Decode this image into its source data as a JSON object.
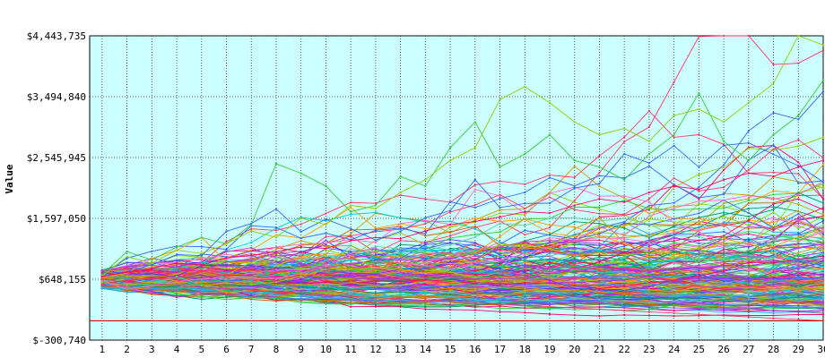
{
  "chart_data": {
    "type": "line",
    "title": "",
    "xlabel": "",
    "ylabel": "Value",
    "x": [
      1,
      2,
      3,
      4,
      5,
      6,
      7,
      8,
      9,
      10,
      11,
      12,
      13,
      14,
      15,
      16,
      17,
      18,
      19,
      20,
      21,
      22,
      23,
      24,
      25,
      26,
      27,
      28,
      29,
      30
    ],
    "x_tick_labels": [
      "1",
      "2",
      "3",
      "4",
      "5",
      "6",
      "7",
      "8",
      "9",
      "10",
      "11",
      "12",
      "13",
      "14",
      "15",
      "16",
      "17",
      "18",
      "19",
      "20",
      "21",
      "22",
      "23",
      "24",
      "25",
      "26",
      "27",
      "28",
      "29",
      "30"
    ],
    "y_ticks": [
      -300740,
      648155,
      1597050,
      2545945,
      3494840,
      4443735
    ],
    "y_tick_labels": [
      "$-300,740",
      "$648,155",
      "$1,597,050",
      "$2,545,945",
      "$3,494,840",
      "$4,443,735"
    ],
    "ylim": [
      -300740,
      4443735
    ],
    "reference_line": {
      "value": 0,
      "color": "#cc0000"
    },
    "grid": true,
    "plot_background": "#ccffff",
    "series_count": 200,
    "start_value": 648155,
    "series": [
      {
        "name": "",
        "values": [
          720000,
          1080000,
          950000,
          1150000,
          1300000,
          1200000,
          1500000,
          2450000,
          2300000,
          2100000,
          1700000,
          1800000,
          2250000,
          2100000,
          2700000,
          3100000,
          2400000,
          2600000,
          2900000,
          2500000,
          2400000,
          2200000,
          2600000,
          2900000,
          3550000,
          2800000,
          2500000,
          2900000,
          3200000,
          3750000
        ]
      },
      {
        "name": "",
        "values": [
          700000,
          1000000,
          900000,
          1100000,
          1050000,
          1200000,
          1400000,
          1300000,
          1600000,
          1500000,
          1800000,
          1750000,
          2000000,
          2200000,
          2500000,
          2700000,
          3450000,
          3650000,
          3400000,
          3100000,
          2900000,
          3000000,
          2800000,
          3200000,
          3300000,
          3100000,
          3400000,
          3700000,
          4443735,
          4300000
        ]
      },
      {
        "name": "",
        "values": [
          690000,
          760000,
          820000,
          900000,
          870000,
          980000,
          1020000,
          1080000,
          1150000,
          1130000,
          1250000,
          1300000,
          1280000,
          1400000,
          1500000,
          1550000,
          1620000,
          1700000,
          1680000,
          1800000,
          1900000,
          1850000,
          2000000,
          2100000,
          2050000,
          2200000,
          2300000,
          2250000,
          2400000,
          2500000
        ]
      },
      {
        "name": "",
        "values": [
          650000,
          600000,
          580000,
          560000,
          520000,
          500000,
          480000,
          450000,
          430000,
          400000,
          380000,
          360000,
          340000,
          320000,
          300000,
          280000,
          260000,
          240000,
          220000,
          200000,
          180000,
          160000,
          140000,
          120000,
          100000,
          80000,
          60000,
          40000,
          20000,
          0
        ]
      }
    ]
  }
}
